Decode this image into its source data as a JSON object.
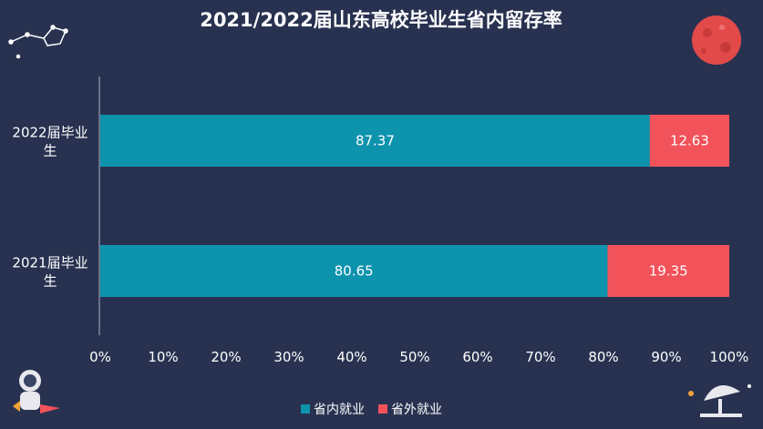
{
  "chart_data": {
    "type": "bar",
    "orientation": "horizontal",
    "stacked": true,
    "title": "2021/2022届山东高校毕业生省内留存率",
    "categories": [
      "2022届毕业生",
      "2021届毕业生"
    ],
    "category_lines": [
      [
        "2022届毕业",
        "生"
      ],
      [
        "2021届毕业",
        "生"
      ]
    ],
    "series": [
      {
        "name": "省内就业",
        "values": [
          87.37,
          80.65
        ],
        "labels": [
          "87.37",
          "80.65"
        ],
        "color": "#0e93ad"
      },
      {
        "name": "省外就业",
        "values": [
          12.63,
          19.35
        ],
        "labels": [
          "12.63",
          "19.35"
        ],
        "color": "#f2525a"
      }
    ],
    "xlim": [
      0,
      100
    ],
    "x_ticks": [
      "0%",
      "10%",
      "20%",
      "30%",
      "40%",
      "50%",
      "60%",
      "70%",
      "80%",
      "90%",
      "100%"
    ],
    "grid": false,
    "legend_position": "bottom"
  },
  "colors": {
    "background": "#283250",
    "axis": "#aab2c8",
    "text": "#ffffff"
  }
}
